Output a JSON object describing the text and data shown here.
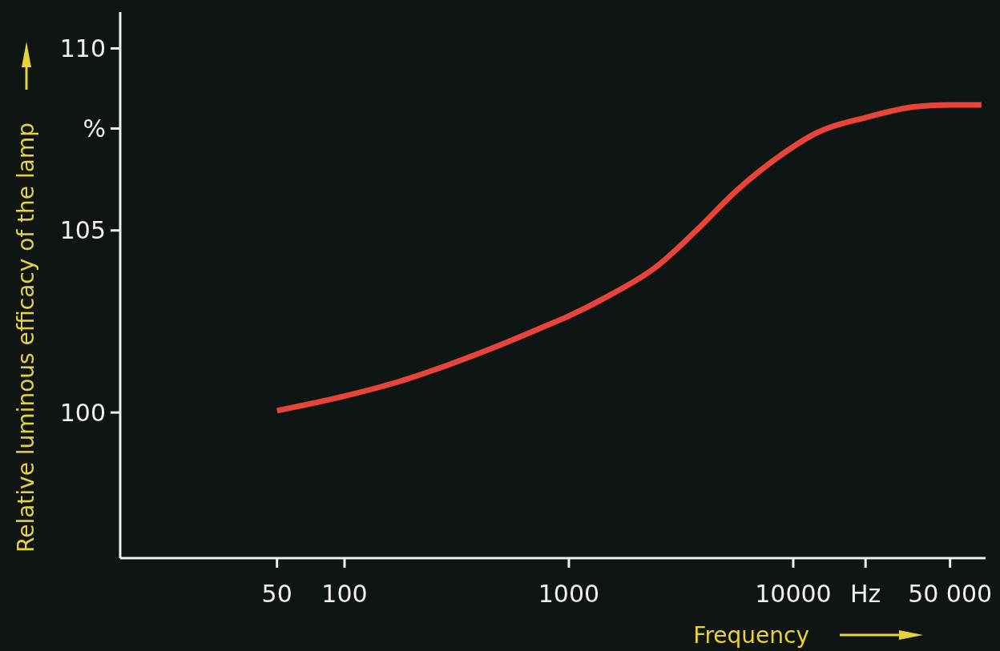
{
  "chart_data": {
    "type": "line",
    "xlabel": "Frequency",
    "ylabel": "Relative luminous efficacy of the lamp",
    "log": "x",
    "grid": false,
    "marker": "none",
    "line_style": "solid",
    "xlim": [
      10,
      72000
    ],
    "xticks": [
      50,
      100,
      1000,
      {
        "value": 10000,
        "label": "10000"
      },
      {
        "value": 21000,
        "label": "Hz"
      },
      {
        "value": 50000,
        "label": "50 000"
      }
    ],
    "ylim": [
      96,
      111
    ],
    "yticks": [
      100,
      105,
      {
        "value": 107.8,
        "label": "%"
      },
      110
    ],
    "series": [
      {
        "color": "#e8443a",
        "x": [
          50,
          100,
          175,
          288,
          470,
          770,
          1000,
          1500,
          2450,
          3700,
          5600,
          8500,
          12900,
          21000,
          35000,
          50000,
          69000
        ],
        "values": [
          100.05,
          100.45,
          100.85,
          101.3,
          101.8,
          102.35,
          102.65,
          103.2,
          104.0,
          105.0,
          106.1,
          107.0,
          107.7,
          108.1,
          108.4,
          108.45,
          108.45
        ]
      }
    ]
  }
}
